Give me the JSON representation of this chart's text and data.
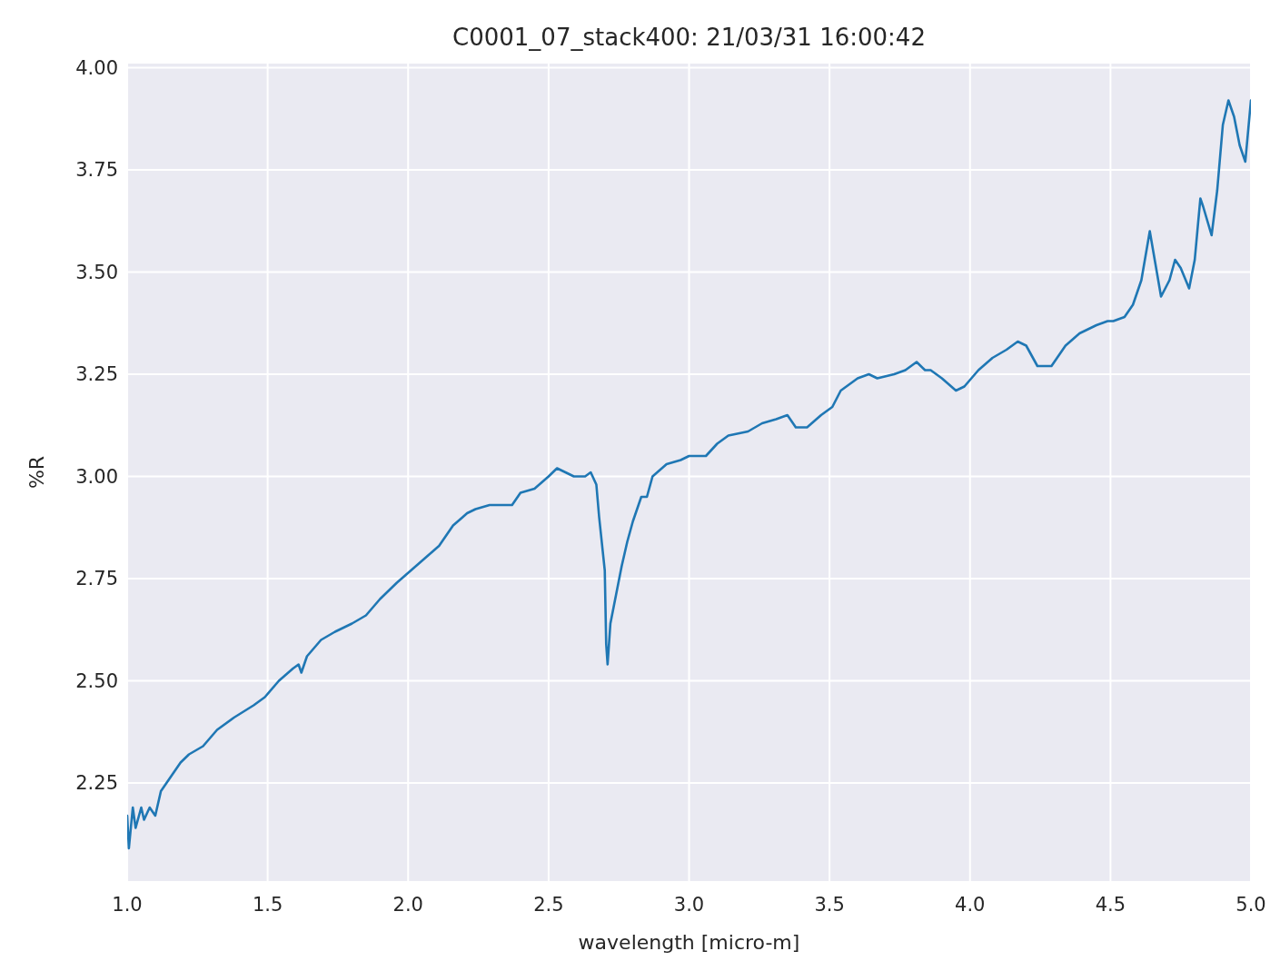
{
  "chart_data": {
    "type": "line",
    "title": "C0001_07_stack400:  21/03/31 16:00:42",
    "xlabel": "wavelength [micro-m]",
    "ylabel": "%R",
    "xlim": [
      1.0,
      5.0
    ],
    "ylim": [
      2.01,
      4.01
    ],
    "xticks": [
      {
        "value": 1,
        "label": "1.0"
      },
      1.5,
      {
        "value": 2,
        "label": "2.0"
      },
      2.5,
      {
        "value": 3,
        "label": "3.0"
      },
      3.5,
      {
        "value": 4,
        "label": "4.0"
      },
      4.5,
      {
        "value": 5,
        "label": "5.0"
      }
    ],
    "yticks": [
      2.25,
      {
        "value": 2.5,
        "label": "2.50"
      },
      2.75,
      {
        "value": 3,
        "label": "3.00"
      },
      3.25,
      {
        "value": 3.5,
        "label": "3.50"
      },
      3.75,
      {
        "value": 4,
        "label": "4.00"
      }
    ],
    "grid": true,
    "marker": "none",
    "line_style": "solid",
    "series": [
      {
        "color": "#1f77b4",
        "x": [
          1.0,
          1.006,
          1.02,
          1.03,
          1.05,
          1.06,
          1.08,
          1.1,
          1.12,
          1.16,
          1.19,
          1.22,
          1.27,
          1.32,
          1.38,
          1.45,
          1.49,
          1.54,
          1.59,
          1.61,
          1.62,
          1.64,
          1.69,
          1.74,
          1.8,
          1.85,
          1.9,
          1.96,
          2.01,
          2.06,
          2.11,
          2.16,
          2.21,
          2.24,
          2.29,
          2.34,
          2.37,
          2.4,
          2.45,
          2.5,
          2.53,
          2.56,
          2.59,
          2.63,
          2.65,
          2.67,
          2.68,
          2.7,
          2.705,
          2.71,
          2.72,
          2.74,
          2.76,
          2.78,
          2.8,
          2.83,
          2.85,
          2.87,
          2.92,
          2.97,
          3.0,
          3.03,
          3.06,
          3.1,
          3.14,
          3.21,
          3.26,
          3.31,
          3.35,
          3.38,
          3.42,
          3.47,
          3.51,
          3.54,
          3.6,
          3.64,
          3.67,
          3.73,
          3.77,
          3.81,
          3.84,
          3.86,
          3.9,
          3.95,
          3.98,
          4.03,
          4.08,
          4.13,
          4.17,
          4.2,
          4.24,
          4.29,
          4.34,
          4.39,
          4.45,
          4.49,
          4.51,
          4.55,
          4.58,
          4.61,
          4.64,
          4.66,
          4.68,
          4.71,
          4.73,
          4.75,
          4.78,
          4.8,
          4.82,
          4.83,
          4.86,
          4.88,
          4.9,
          4.92,
          4.94,
          4.96,
          4.98,
          5.0
        ],
        "values": [
          2.17,
          2.09,
          2.19,
          2.14,
          2.19,
          2.16,
          2.19,
          2.17,
          2.23,
          2.27,
          2.3,
          2.32,
          2.34,
          2.38,
          2.41,
          2.44,
          2.46,
          2.5,
          2.53,
          2.54,
          2.52,
          2.56,
          2.6,
          2.62,
          2.64,
          2.66,
          2.7,
          2.74,
          2.77,
          2.8,
          2.83,
          2.88,
          2.91,
          2.92,
          2.93,
          2.93,
          2.93,
          2.96,
          2.97,
          3.0,
          3.02,
          3.01,
          3.0,
          3.0,
          3.01,
          2.98,
          2.9,
          2.77,
          2.59,
          2.54,
          2.64,
          2.71,
          2.78,
          2.84,
          2.89,
          2.95,
          2.95,
          3.0,
          3.03,
          3.04,
          3.05,
          3.05,
          3.05,
          3.08,
          3.1,
          3.11,
          3.13,
          3.14,
          3.15,
          3.12,
          3.12,
          3.15,
          3.17,
          3.21,
          3.24,
          3.25,
          3.24,
          3.25,
          3.26,
          3.28,
          3.26,
          3.26,
          3.24,
          3.21,
          3.22,
          3.26,
          3.29,
          3.31,
          3.33,
          3.32,
          3.27,
          3.27,
          3.32,
          3.35,
          3.37,
          3.38,
          3.38,
          3.39,
          3.42,
          3.48,
          3.6,
          3.52,
          3.44,
          3.48,
          3.53,
          3.51,
          3.46,
          3.53,
          3.68,
          3.66,
          3.59,
          3.7,
          3.86,
          3.92,
          3.88,
          3.81,
          3.77,
          3.92
        ]
      }
    ]
  }
}
